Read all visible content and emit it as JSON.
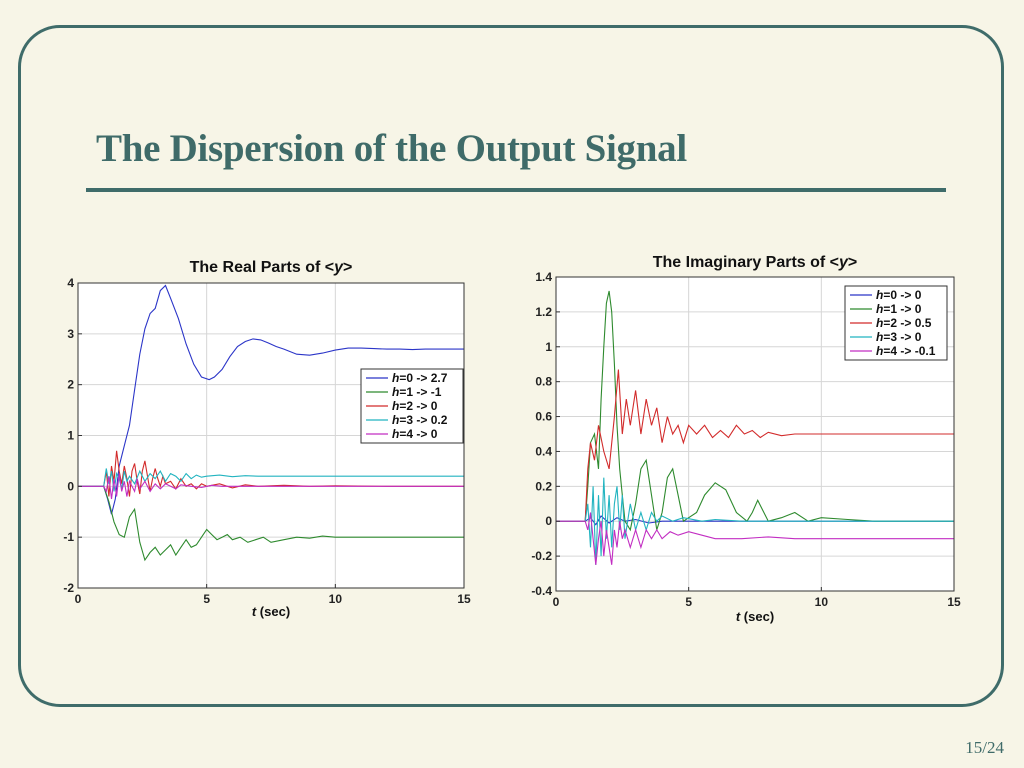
{
  "slide": {
    "title": "The Dispersion of the Output Signal",
    "page_number": "15/24"
  },
  "chart_data": [
    {
      "type": "line",
      "title": "The Real Parts of <y>",
      "title_pre": "The Real Parts of <",
      "title_var": "y",
      "title_post": ">",
      "xlabel_var": "t",
      "xlabel_rest": " (sec)",
      "xlim": [
        0,
        15
      ],
      "ylim": [
        -2,
        4
      ],
      "xticks": [
        0,
        5,
        10,
        15
      ],
      "yticks": [
        -2,
        -1,
        0,
        1,
        2,
        3,
        4
      ],
      "grid": true,
      "legend_position": "right-middle",
      "series": [
        {
          "name": "h=0 -> 2.7",
          "legend_var": "h",
          "legend_rest": "=0 -> 2.7",
          "color": "#2b35c8",
          "x": [
            0,
            1,
            1.15,
            1.3,
            1.45,
            1.6,
            1.8,
            2.0,
            2.2,
            2.4,
            2.6,
            2.8,
            3.0,
            3.2,
            3.4,
            3.6,
            3.9,
            4.2,
            4.5,
            4.8,
            5.1,
            5.3,
            5.6,
            5.9,
            6.2,
            6.5,
            6.8,
            7.1,
            7.4,
            7.7,
            8.0,
            8.5,
            9.0,
            9.5,
            10.0,
            10.5,
            11.0,
            11.5,
            12.0,
            12.5,
            13.0,
            13.5,
            14.0,
            14.5,
            15.0
          ],
          "y": [
            0,
            0,
            -0.25,
            -0.55,
            -0.25,
            0.4,
            0.8,
            1.2,
            1.9,
            2.6,
            3.1,
            3.4,
            3.5,
            3.85,
            3.95,
            3.7,
            3.3,
            2.8,
            2.4,
            2.15,
            2.1,
            2.15,
            2.3,
            2.55,
            2.75,
            2.85,
            2.9,
            2.88,
            2.82,
            2.75,
            2.7,
            2.6,
            2.58,
            2.62,
            2.68,
            2.72,
            2.72,
            2.71,
            2.7,
            2.7,
            2.69,
            2.7,
            2.7,
            2.7,
            2.7
          ]
        },
        {
          "name": "h=1 -> -1",
          "legend_var": "h",
          "legend_rest": "=1 -> -1",
          "color": "#2e8a2e",
          "x": [
            0,
            1,
            1.2,
            1.4,
            1.6,
            1.8,
            2.0,
            2.2,
            2.4,
            2.6,
            2.8,
            3.0,
            3.2,
            3.4,
            3.6,
            3.8,
            4.0,
            4.2,
            4.4,
            4.6,
            4.8,
            5.0,
            5.2,
            5.4,
            5.6,
            5.8,
            6.0,
            6.3,
            6.6,
            6.9,
            7.2,
            7.5,
            8.0,
            8.5,
            9.0,
            9.5,
            10.0,
            11.0,
            12.0,
            13.0,
            14.0,
            15.0
          ],
          "y": [
            0,
            0,
            -0.3,
            -0.7,
            -0.95,
            -1.0,
            -0.6,
            -0.45,
            -1.1,
            -1.45,
            -1.3,
            -1.2,
            -1.35,
            -1.25,
            -1.15,
            -1.35,
            -1.2,
            -1.05,
            -1.2,
            -1.15,
            -1.0,
            -0.85,
            -0.95,
            -1.05,
            -1.0,
            -0.95,
            -1.05,
            -1.0,
            -1.1,
            -1.05,
            -1.0,
            -1.1,
            -1.05,
            -1.0,
            -1.02,
            -0.98,
            -1.0,
            -1.0,
            -1.0,
            -1.0,
            -1.0,
            -1.0
          ]
        },
        {
          "name": "h=2 -> 0",
          "legend_var": "h",
          "legend_rest": "=2 -> 0",
          "color": "#d22b2b",
          "x": [
            0,
            1,
            1.1,
            1.2,
            1.3,
            1.4,
            1.5,
            1.6,
            1.7,
            1.8,
            1.9,
            2.0,
            2.1,
            2.2,
            2.3,
            2.4,
            2.5,
            2.6,
            2.7,
            2.8,
            2.9,
            3.0,
            3.1,
            3.2,
            3.3,
            3.4,
            3.6,
            3.8,
            4.0,
            4.2,
            4.4,
            4.6,
            4.8,
            5.0,
            5.5,
            6.0,
            6.5,
            7.0,
            8.0,
            9.0,
            10.0,
            12.0,
            15.0
          ],
          "y": [
            0,
            0,
            0.3,
            -0.2,
            0.4,
            0.1,
            0.7,
            0.3,
            0.05,
            0.4,
            0.15,
            -0.2,
            0.3,
            0.45,
            0.1,
            -0.15,
            0.3,
            0.5,
            0.2,
            -0.1,
            0.15,
            0.35,
            0.15,
            0.0,
            0.2,
            0.05,
            0.1,
            -0.05,
            0.15,
            0.0,
            0.05,
            -0.05,
            0.05,
            0.0,
            0.05,
            -0.03,
            0.03,
            0.0,
            0.02,
            0.0,
            0.01,
            0.0,
            0.0
          ]
        },
        {
          "name": "h=3 -> 0.2",
          "legend_var": "h",
          "legend_rest": "=3 -> 0.2",
          "color": "#22b4c0",
          "x": [
            0,
            1,
            1.1,
            1.2,
            1.3,
            1.4,
            1.5,
            1.6,
            1.7,
            1.8,
            1.9,
            2.0,
            2.2,
            2.4,
            2.6,
            2.8,
            3.0,
            3.2,
            3.4,
            3.6,
            3.8,
            4.0,
            4.2,
            4.4,
            4.6,
            4.8,
            5.0,
            5.5,
            6.0,
            6.5,
            7.0,
            8.0,
            9.0,
            10.0,
            12.0,
            15.0
          ],
          "y": [
            0,
            0,
            0.35,
            0.05,
            0.3,
            -0.1,
            0.25,
            0.15,
            -0.05,
            0.3,
            0.1,
            0.2,
            0.05,
            0.3,
            0.1,
            0.25,
            0.15,
            0.3,
            0.1,
            0.25,
            0.2,
            0.1,
            0.25,
            0.15,
            0.22,
            0.18,
            0.2,
            0.22,
            0.19,
            0.21,
            0.2,
            0.2,
            0.2,
            0.2,
            0.2,
            0.2
          ]
        },
        {
          "name": "h=4 -> 0",
          "legend_var": "h",
          "legend_rest": "=4 -> 0",
          "color": "#c22ec2",
          "x": [
            0,
            1,
            1.1,
            1.2,
            1.3,
            1.4,
            1.5,
            1.6,
            1.7,
            1.8,
            1.9,
            2.0,
            2.1,
            2.2,
            2.3,
            2.4,
            2.6,
            2.8,
            3.0,
            3.2,
            3.4,
            3.6,
            3.8,
            4.0,
            4.4,
            4.8,
            5.2,
            5.6,
            6.0,
            7.0,
            8.0,
            10.0,
            15.0
          ],
          "y": [
            0,
            0,
            -0.1,
            0.2,
            -0.25,
            0.15,
            -0.2,
            0.25,
            -0.1,
            0.1,
            -0.2,
            0.1,
            0.0,
            -0.1,
            0.15,
            -0.05,
            0.1,
            -0.1,
            0.05,
            -0.05,
            0.05,
            0.0,
            -0.05,
            0.03,
            0.0,
            -0.02,
            0.02,
            0.0,
            0.0,
            0.0,
            0.0,
            0.0,
            0.0
          ]
        }
      ]
    },
    {
      "type": "line",
      "title": "The Imaginary Parts of <y>",
      "title_pre": "The Imaginary Parts of <",
      "title_var": "y",
      "title_post": ">",
      "xlabel_var": "t",
      "xlabel_rest": " (sec)",
      "xlim": [
        0,
        15
      ],
      "ylim": [
        -0.4,
        1.4
      ],
      "xticks": [
        0,
        5,
        10,
        15
      ],
      "yticks": [
        -0.4,
        -0.2,
        0,
        0.2,
        0.4,
        0.6,
        0.8,
        1,
        1.2,
        1.4
      ],
      "grid": true,
      "legend_position": "top-right",
      "series": [
        {
          "name": "h=0 -> 0",
          "legend_var": "h",
          "legend_rest": "=0 -> 0",
          "color": "#2b35c8",
          "x": [
            0,
            1.1,
            1.3,
            1.5,
            1.7,
            2.0,
            2.3,
            2.6,
            3.0,
            3.5,
            4.0,
            5.0,
            6.0,
            8.0,
            10.0,
            15.0
          ],
          "y": [
            0,
            0,
            0.02,
            -0.02,
            0.03,
            -0.01,
            0.02,
            0.0,
            0.01,
            -0.01,
            0.0,
            0.0,
            0.0,
            0.0,
            0.0,
            0.0
          ]
        },
        {
          "name": "h=1 -> 0",
          "legend_var": "h",
          "legend_rest": "=1 -> 0",
          "color": "#2e8a2e",
          "x": [
            0,
            1.1,
            1.2,
            1.3,
            1.45,
            1.6,
            1.7,
            1.8,
            1.9,
            2.0,
            2.1,
            2.2,
            2.3,
            2.4,
            2.5,
            2.6,
            2.8,
            3.0,
            3.2,
            3.4,
            3.6,
            3.8,
            4.0,
            4.2,
            4.4,
            4.6,
            4.8,
            5.0,
            5.3,
            5.6,
            6.0,
            6.4,
            6.8,
            7.2,
            7.4,
            7.6,
            8.0,
            8.5,
            9.0,
            9.5,
            10.0,
            11.0,
            12.0,
            13.0,
            14.0,
            15.0
          ],
          "y": [
            0,
            0,
            0.2,
            0.45,
            0.5,
            0.3,
            0.7,
            1.0,
            1.25,
            1.32,
            1.2,
            0.9,
            0.55,
            0.3,
            0.15,
            0.0,
            -0.05,
            0.1,
            0.3,
            0.35,
            0.15,
            -0.05,
            0.05,
            0.25,
            0.3,
            0.15,
            0.0,
            0.02,
            0.05,
            0.15,
            0.22,
            0.18,
            0.05,
            0.0,
            0.05,
            0.12,
            0.0,
            0.02,
            0.05,
            0.0,
            0.02,
            0.01,
            0.0,
            0.0,
            0.0,
            0.0
          ]
        },
        {
          "name": "h=2 -> 0.5",
          "legend_var": "h",
          "legend_rest": "=2 -> 0.5",
          "color": "#d22b2b",
          "x": [
            0,
            1.1,
            1.2,
            1.3,
            1.45,
            1.6,
            1.8,
            2.0,
            2.2,
            2.35,
            2.5,
            2.65,
            2.8,
            3.0,
            3.2,
            3.4,
            3.6,
            3.8,
            4.0,
            4.2,
            4.4,
            4.6,
            4.8,
            5.0,
            5.3,
            5.6,
            5.9,
            6.2,
            6.5,
            6.8,
            7.1,
            7.4,
            7.7,
            8.0,
            8.5,
            9.0,
            9.5,
            10.0,
            11.0,
            12.0,
            13.0,
            14.0,
            15.0
          ],
          "y": [
            0,
            0,
            0.3,
            0.45,
            0.35,
            0.55,
            0.4,
            0.3,
            0.6,
            0.87,
            0.5,
            0.7,
            0.55,
            0.75,
            0.5,
            0.7,
            0.55,
            0.65,
            0.45,
            0.6,
            0.5,
            0.55,
            0.45,
            0.55,
            0.5,
            0.55,
            0.48,
            0.52,
            0.48,
            0.55,
            0.5,
            0.52,
            0.48,
            0.51,
            0.49,
            0.5,
            0.5,
            0.5,
            0.5,
            0.5,
            0.5,
            0.5,
            0.5
          ]
        },
        {
          "name": "h=3 -> 0",
          "legend_var": "h",
          "legend_rest": "=3 -> 0",
          "color": "#22b4c0",
          "x": [
            0,
            1.1,
            1.2,
            1.3,
            1.4,
            1.5,
            1.6,
            1.7,
            1.8,
            1.9,
            2.0,
            2.1,
            2.2,
            2.3,
            2.4,
            2.5,
            2.6,
            2.8,
            3.0,
            3.2,
            3.4,
            3.6,
            3.8,
            4.0,
            4.4,
            4.8,
            5.5,
            6.0,
            7.0,
            8.0,
            10.0,
            15.0
          ],
          "y": [
            0,
            0,
            0.1,
            -0.15,
            0.2,
            -0.25,
            0.15,
            -0.2,
            0.25,
            -0.1,
            0.15,
            -0.15,
            0.1,
            0.2,
            -0.05,
            0.15,
            -0.1,
            0.1,
            -0.05,
            0.05,
            -0.05,
            0.05,
            0.0,
            0.03,
            0.0,
            0.02,
            0.0,
            0.01,
            0.0,
            0.0,
            0.0,
            0.0
          ]
        },
        {
          "name": "h=4 -> -0.1",
          "legend_var": "h",
          "legend_rest": "=4 -> -0.1",
          "color": "#c22ec2",
          "x": [
            0,
            1.1,
            1.2,
            1.3,
            1.4,
            1.5,
            1.6,
            1.7,
            1.8,
            1.9,
            2.0,
            2.1,
            2.2,
            2.3,
            2.4,
            2.5,
            2.6,
            2.8,
            3.0,
            3.2,
            3.4,
            3.6,
            3.8,
            4.0,
            4.3,
            4.6,
            5.0,
            5.5,
            6.0,
            7.0,
            8.0,
            9.0,
            10.0,
            11.0,
            12.0,
            13.0,
            14.0,
            15.0
          ],
          "y": [
            0,
            0,
            -0.05,
            0.05,
            -0.1,
            -0.25,
            -0.1,
            0.0,
            -0.2,
            -0.05,
            -0.15,
            -0.25,
            -0.05,
            -0.15,
            0.0,
            -0.1,
            -0.05,
            -0.15,
            -0.05,
            -0.15,
            -0.05,
            -0.1,
            -0.05,
            -0.1,
            -0.06,
            -0.08,
            -0.06,
            -0.08,
            -0.1,
            -0.1,
            -0.09,
            -0.1,
            -0.1,
            -0.1,
            -0.1,
            -0.1,
            -0.1,
            -0.1
          ]
        }
      ]
    }
  ]
}
